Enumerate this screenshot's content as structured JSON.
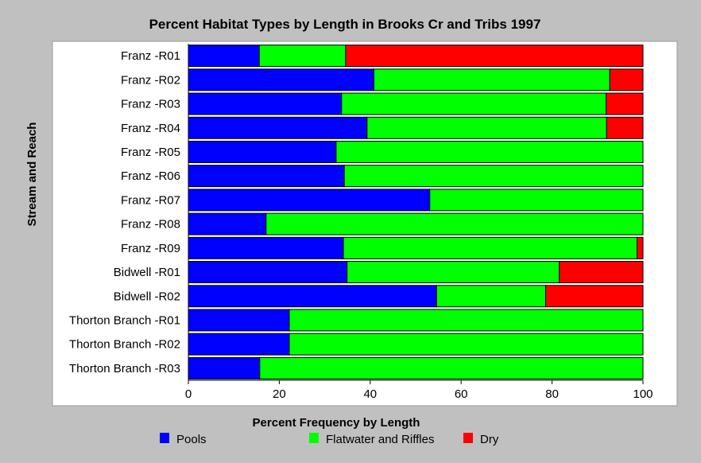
{
  "chart_data": {
    "type": "bar",
    "orientation": "horizontal",
    "stacked": true,
    "title": "Percent Habitat Types by Length in Brooks Cr and Tribs 1997",
    "xlabel": "Percent Frequency by Length",
    "ylabel": "Stream and Reach",
    "xlim": [
      0,
      100
    ],
    "xticks": [
      0,
      20,
      40,
      60,
      80,
      100
    ],
    "grid": false,
    "legend_position": "bottom",
    "categories": [
      "Franz -R01",
      "Franz -R02",
      "Franz -R03",
      "Franz -R04",
      "Franz -R05",
      "Franz -R06",
      "Franz -R07",
      "Franz -R08",
      "Franz -R09",
      "Bidwell -R01",
      "Bidwell -R02",
      "Thorton Branch -R01",
      "Thorton Branch -R02",
      "Thorton Branch -R03"
    ],
    "series": [
      {
        "name": "Pools",
        "color": "#0000ff",
        "values": [
          15.6,
          40.8,
          33.7,
          39.3,
          32.5,
          34.3,
          53.1,
          17.1,
          34.1,
          34.9,
          54.6,
          22.2,
          22.2,
          15.7
        ]
      },
      {
        "name": "Flatwater and Riffles",
        "color": "#00ff00",
        "values": [
          19.0,
          51.9,
          58.2,
          52.7,
          67.5,
          65.7,
          46.9,
          82.9,
          64.6,
          46.7,
          24.0,
          77.8,
          77.8,
          84.3
        ]
      },
      {
        "name": "Dry",
        "color": "#ff0000",
        "values": [
          65.4,
          7.3,
          8.1,
          8.0,
          0,
          0,
          0,
          0,
          1.3,
          18.4,
          21.4,
          0,
          0,
          0
        ]
      }
    ]
  }
}
